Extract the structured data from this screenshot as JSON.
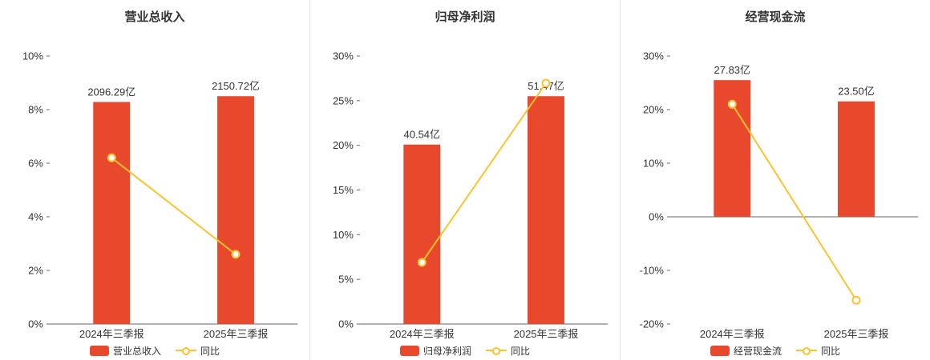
{
  "colors": {
    "bar": "#e8492d",
    "line": "#fcc32c",
    "axis_line": "#666666",
    "text": "#333333",
    "separator": "#e0e0e0",
    "background": "#ffffff"
  },
  "layout": {
    "bar_max_fraction_of_axis": 0.85,
    "legend_position": "bottom",
    "grid": false
  },
  "chart_data": [
    {
      "type": "bar",
      "title": "营业总收入",
      "categories": [
        "2024年三季报",
        "2025年三季报"
      ],
      "series": [
        {
          "name": "营业总收入",
          "type": "bar",
          "unit": "亿",
          "values": [
            2096.29,
            2150.72
          ],
          "labels": [
            "2096.29亿",
            "2150.72亿"
          ]
        },
        {
          "name": "同比",
          "type": "line",
          "unit": "%",
          "values": [
            6.2,
            2.6
          ]
        }
      ],
      "ylim": [
        0,
        10
      ],
      "yticks": [
        {
          "value": 0,
          "label": "0%"
        },
        {
          "value": 2,
          "label": "2%"
        },
        {
          "value": 4,
          "label": "4%"
        },
        {
          "value": 6,
          "label": "6%"
        },
        {
          "value": 8,
          "label": "8%"
        },
        {
          "value": 10,
          "label": "10%"
        }
      ]
    },
    {
      "type": "bar",
      "title": "归母净利润",
      "categories": [
        "2024年三季报",
        "2025年三季报"
      ],
      "series": [
        {
          "name": "归母净利润",
          "type": "bar",
          "unit": "亿",
          "values": [
            40.54,
            51.47
          ],
          "labels": [
            "40.54亿",
            "51.47亿"
          ]
        },
        {
          "name": "同比",
          "type": "line",
          "unit": "%",
          "values": [
            6.9,
            26.96
          ]
        }
      ],
      "ylim": [
        0,
        30
      ],
      "yticks": [
        {
          "value": 0,
          "label": "0%"
        },
        {
          "value": 5,
          "label": "5%"
        },
        {
          "value": 10,
          "label": "10%"
        },
        {
          "value": 15,
          "label": "15%"
        },
        {
          "value": 20,
          "label": "20%"
        },
        {
          "value": 25,
          "label": "25%"
        },
        {
          "value": 30,
          "label": "30%"
        }
      ]
    },
    {
      "type": "bar",
      "title": "经营现金流",
      "categories": [
        "2024年三季报",
        "2025年三季报"
      ],
      "series": [
        {
          "name": "经营现金流",
          "type": "bar",
          "unit": "亿",
          "values": [
            27.83,
            23.5
          ],
          "labels": [
            "27.83亿",
            "23.50亿"
          ]
        },
        {
          "name": "同比",
          "type": "line",
          "unit": "%",
          "values": [
            21.0,
            -15.56
          ]
        }
      ],
      "ylim": [
        -20,
        30
      ],
      "yticks": [
        {
          "value": -20,
          "label": "-20%"
        },
        {
          "value": -10,
          "label": "-10%"
        },
        {
          "value": 0,
          "label": "0%"
        },
        {
          "value": 10,
          "label": "10%"
        },
        {
          "value": 20,
          "label": "20%"
        },
        {
          "value": 30,
          "label": "30%"
        }
      ]
    }
  ]
}
